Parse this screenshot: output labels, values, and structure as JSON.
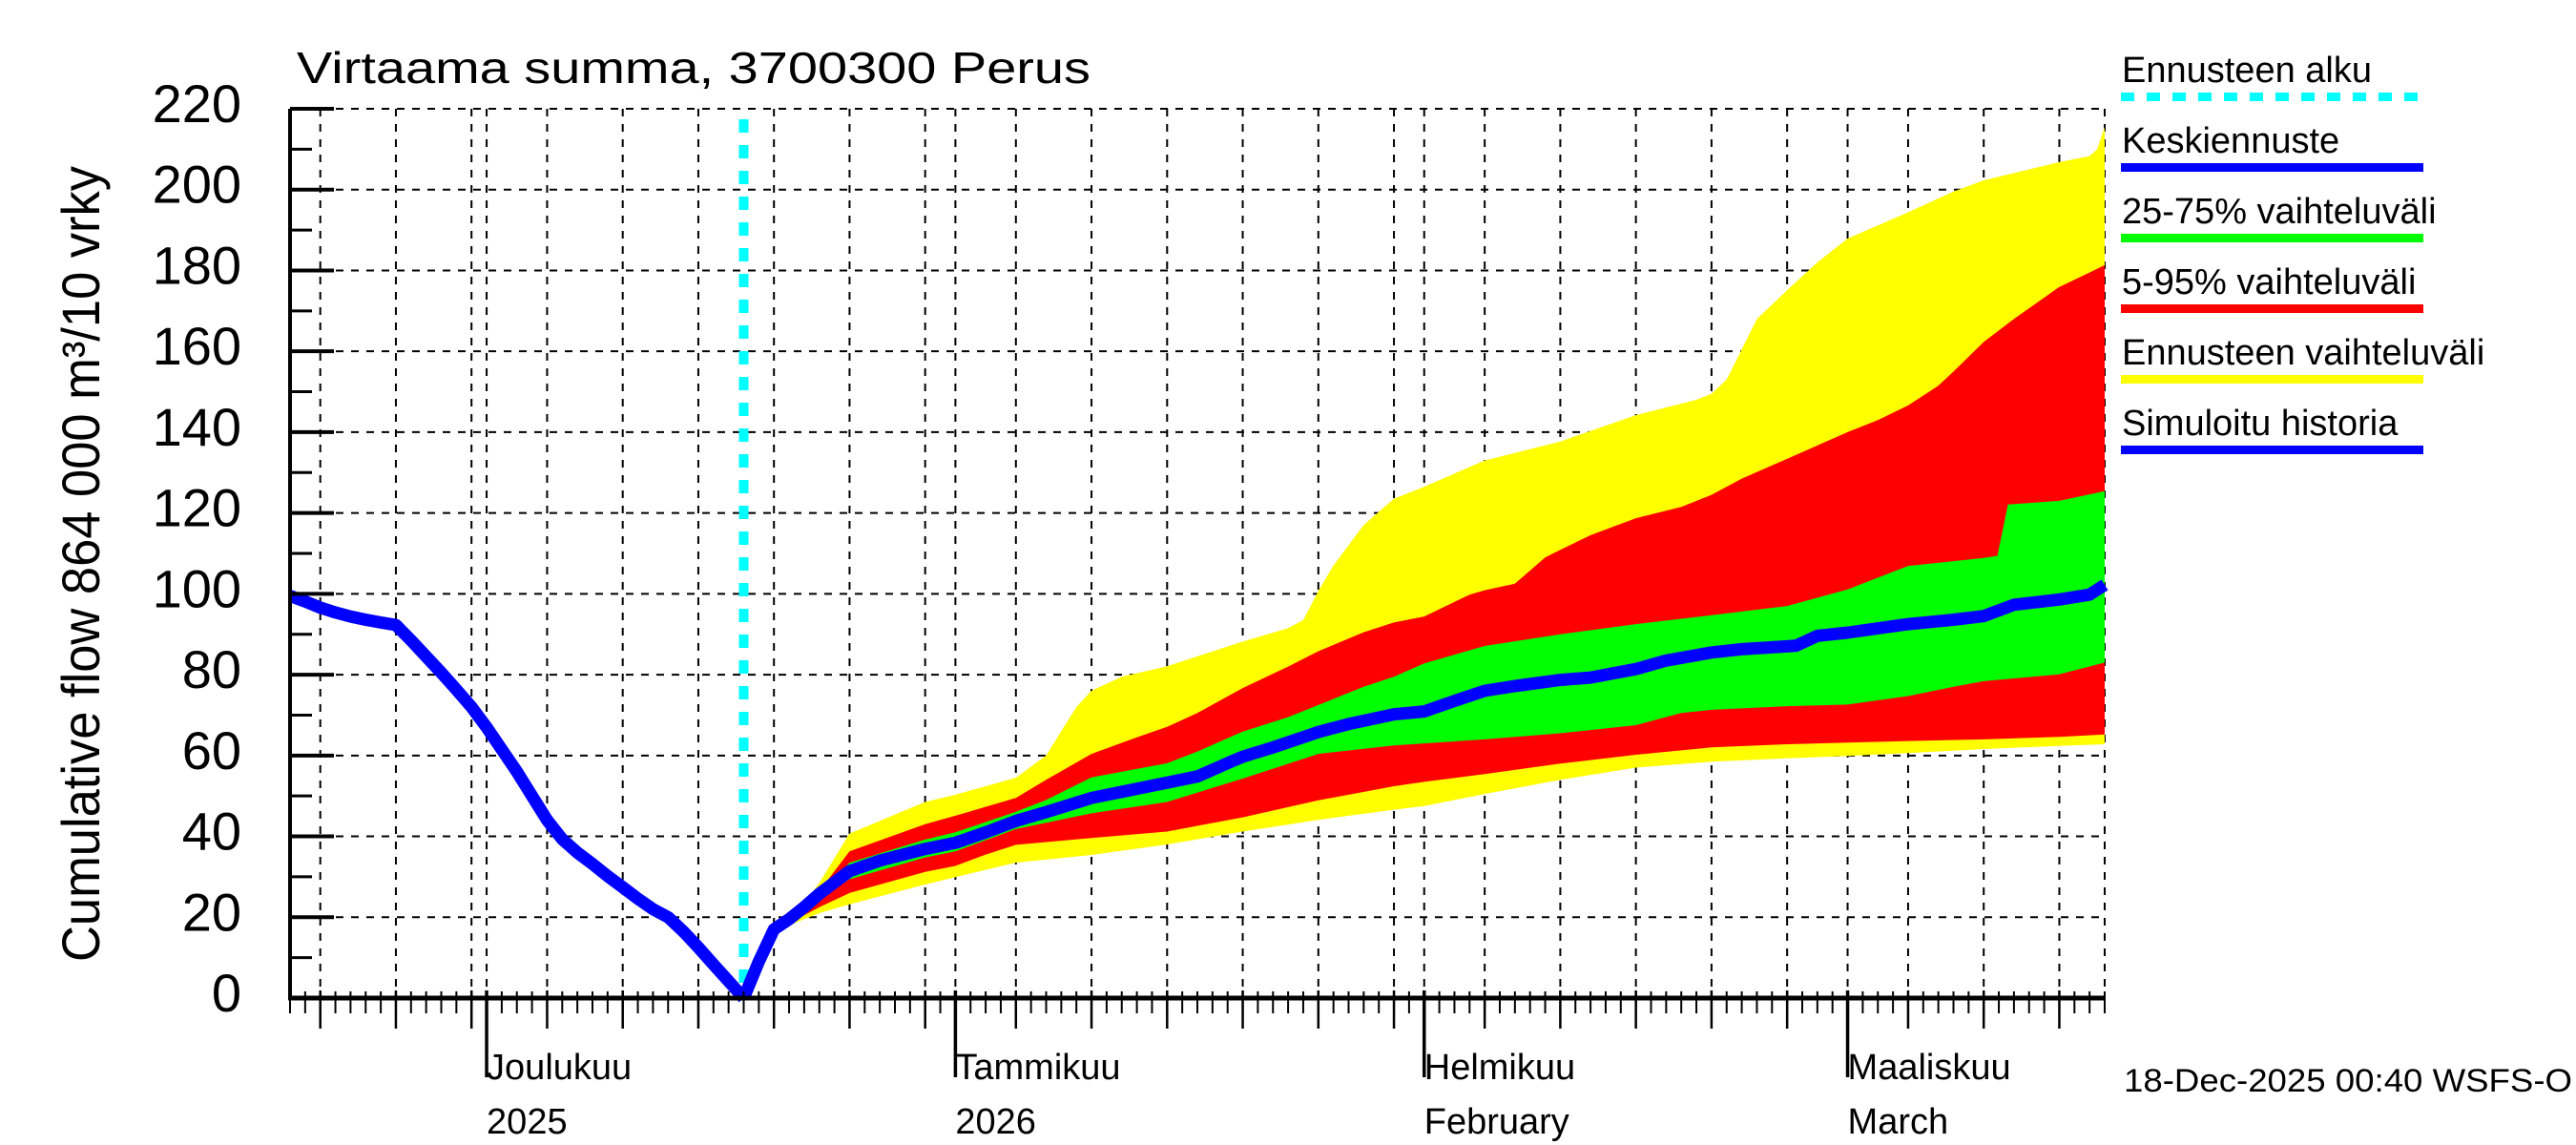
{
  "chart_data": {
    "type": "line",
    "title": "Virtaama summa, 3700300 Perus",
    "ylabel": "Cumulative flow  864 000 m³/10 vrky",
    "timestamp": "18-Dec-2025 00:40 WSFS-O",
    "ylim": [
      0,
      220
    ],
    "y_major_ticks": [
      0,
      20,
      40,
      60,
      80,
      100,
      120,
      140,
      160,
      180,
      200,
      220
    ],
    "y_minor_ticks": [
      10,
      30,
      50,
      70,
      90,
      110,
      130,
      150,
      170,
      190,
      210
    ],
    "x_total_days": 120,
    "forecast_start_day": 30,
    "x_gridline_days": [
      2,
      7,
      12,
      13,
      17,
      22,
      27,
      32,
      37,
      42,
      44,
      48,
      53,
      58,
      63,
      68,
      73,
      75,
      79,
      84,
      89,
      94,
      99,
      103,
      107,
      112,
      117,
      120
    ],
    "x_medium_tick_days": [
      2,
      7,
      12,
      17,
      22,
      27,
      32,
      37,
      42,
      48,
      53,
      58,
      63,
      68,
      73,
      79,
      84,
      89,
      94,
      99,
      107,
      112,
      117
    ],
    "x_month_tick_days": [
      13,
      44,
      75,
      103
    ],
    "month_labels": [
      {
        "name": "Joulukuu",
        "sub": "2025",
        "day": 13
      },
      {
        "name": "Tammikuu",
        "sub": "2026",
        "day": 44
      },
      {
        "name": "Helmikuu",
        "sub": "February",
        "day": 75
      },
      {
        "name": "Maaliskuu",
        "sub": "March",
        "day": 103
      }
    ],
    "colors": {
      "history": "#0000ff",
      "median": "#0000ff",
      "band_25_75": "#00ff00",
      "band_5_95": "#ff0000",
      "band_minmax": "#ffff00",
      "forecast_start": "#00ffff",
      "grid": "#000000",
      "axis": "#000000"
    },
    "legend": [
      {
        "label": "Ennusteen alku",
        "color": "#00ffff",
        "dashed": true
      },
      {
        "label": "Keskiennuste",
        "color": "#0000ff",
        "dashed": false
      },
      {
        "label": "25-75% vaihteluväli",
        "color": "#00ff00",
        "dashed": false
      },
      {
        "label": "5-95% vaihteluväli",
        "color": "#ff0000",
        "dashed": false
      },
      {
        "label": "Ennusteen vaihteluväli",
        "color": "#ffff00",
        "dashed": false
      },
      {
        "label": "Simuloitu historia",
        "color": "#0000ff",
        "dashed": false
      }
    ],
    "series": {
      "history": [
        [
          0,
          99.5
        ],
        [
          1,
          98.1
        ],
        [
          2,
          96.6
        ],
        [
          3,
          95.4
        ],
        [
          4,
          94.4
        ],
        [
          5,
          93.6
        ],
        [
          6,
          92.9
        ],
        [
          7,
          92.3
        ],
        [
          8,
          88.5
        ],
        [
          9,
          84.5
        ],
        [
          10,
          80.5
        ],
        [
          11,
          76.3
        ],
        [
          12,
          72.0
        ],
        [
          13,
          67.0
        ],
        [
          14,
          61.5
        ],
        [
          15,
          56.0
        ],
        [
          16,
          50.0
        ],
        [
          17,
          44.0
        ],
        [
          18,
          39.3
        ],
        [
          19,
          36.0
        ],
        [
          20,
          33.2
        ],
        [
          21,
          30.2
        ],
        [
          22,
          27.4
        ],
        [
          23,
          24.6
        ],
        [
          24,
          22.0
        ],
        [
          25,
          20.0
        ],
        [
          26,
          16.5
        ],
        [
          27,
          12.5
        ],
        [
          28,
          8.3
        ],
        [
          29,
          4.2
        ],
        [
          30,
          0
        ]
      ],
      "median": [
        [
          30,
          0
        ],
        [
          31,
          9
        ],
        [
          32,
          17
        ],
        [
          33,
          19.5
        ],
        [
          34,
          22.5
        ],
        [
          35,
          25.8
        ],
        [
          37,
          31.4
        ],
        [
          39,
          34
        ],
        [
          42,
          36.9
        ],
        [
          44,
          38.4
        ],
        [
          46,
          41
        ],
        [
          48,
          43.8
        ],
        [
          50,
          46
        ],
        [
          53,
          49.5
        ],
        [
          55,
          51
        ],
        [
          58,
          53.3
        ],
        [
          60,
          54.8
        ],
        [
          62.3,
          58.6
        ],
        [
          63,
          59.7
        ],
        [
          65,
          62
        ],
        [
          68,
          65.8
        ],
        [
          70,
          67.8
        ],
        [
          73,
          70.2
        ],
        [
          75,
          70.9
        ],
        [
          77,
          73.5
        ],
        [
          79,
          76.0
        ],
        [
          81,
          77.2
        ],
        [
          84,
          78.7
        ],
        [
          86,
          79.3
        ],
        [
          89,
          81.4
        ],
        [
          91,
          83.5
        ],
        [
          94,
          85.5
        ],
        [
          96,
          86.3
        ],
        [
          99,
          87.0
        ],
        [
          99.6,
          87.2
        ],
        [
          101,
          89.6
        ],
        [
          103,
          90.4
        ],
        [
          107,
          92.5
        ],
        [
          110,
          93.6
        ],
        [
          112,
          94.5
        ],
        [
          114,
          97.3
        ],
        [
          117,
          98.6
        ],
        [
          119,
          99.8
        ],
        [
          120,
          102.2
        ]
      ],
      "p75": [
        [
          30,
          0
        ],
        [
          31,
          9.3
        ],
        [
          32,
          17.5
        ],
        [
          33,
          19.8
        ],
        [
          34,
          22.8
        ],
        [
          35,
          26
        ],
        [
          37,
          33.5
        ],
        [
          42,
          39.2
        ],
        [
          44,
          41.0
        ],
        [
          48,
          46.1
        ],
        [
          50,
          49
        ],
        [
          53,
          54.6
        ],
        [
          58,
          58.1
        ],
        [
          60,
          61
        ],
        [
          63,
          65.9
        ],
        [
          66,
          69.5
        ],
        [
          68,
          72.5
        ],
        [
          71,
          77
        ],
        [
          73,
          79.5
        ],
        [
          75,
          82.8
        ],
        [
          79,
          87.1
        ],
        [
          84,
          90.0
        ],
        [
          89,
          92.5
        ],
        [
          94,
          94.7
        ],
        [
          99,
          97.0
        ],
        [
          103,
          101.1
        ],
        [
          105,
          104
        ],
        [
          107,
          106.9
        ],
        [
          112,
          108.9
        ],
        [
          112.9,
          109.4
        ],
        [
          113.6,
          122.1
        ],
        [
          117,
          123.0
        ],
        [
          120,
          125.4
        ]
      ],
      "p25": [
        [
          30,
          0
        ],
        [
          31,
          8.8
        ],
        [
          32,
          16.5
        ],
        [
          33,
          19
        ],
        [
          34,
          21.5
        ],
        [
          35,
          24.5
        ],
        [
          37,
          29.4
        ],
        [
          42,
          34.8
        ],
        [
          44,
          36.3
        ],
        [
          48,
          41.8
        ],
        [
          53,
          45.7
        ],
        [
          58,
          48.5
        ],
        [
          63,
          54.3
        ],
        [
          68,
          60.4
        ],
        [
          73,
          62.5
        ],
        [
          75,
          63.0
        ],
        [
          79,
          64.0
        ],
        [
          84,
          65.5
        ],
        [
          89,
          67.5
        ],
        [
          92,
          70.5
        ],
        [
          94,
          71.3
        ],
        [
          99,
          72.2
        ],
        [
          103,
          72.6
        ],
        [
          107,
          74.7
        ],
        [
          110,
          77
        ],
        [
          112,
          78.4
        ],
        [
          117,
          80.1
        ],
        [
          120,
          83.0
        ]
      ],
      "p95": [
        [
          30,
          0
        ],
        [
          31,
          9.5
        ],
        [
          32,
          18
        ],
        [
          33,
          20
        ],
        [
          34,
          23
        ],
        [
          35,
          26.5
        ],
        [
          37,
          36.3
        ],
        [
          42,
          43.0
        ],
        [
          44,
          45.1
        ],
        [
          48,
          49.5
        ],
        [
          50,
          54
        ],
        [
          53,
          60.4
        ],
        [
          56,
          64.5
        ],
        [
          58,
          67.1
        ],
        [
          60,
          70.5
        ],
        [
          63,
          76.7
        ],
        [
          66,
          82
        ],
        [
          68,
          85.8
        ],
        [
          71,
          90.5
        ],
        [
          73,
          92.9
        ],
        [
          75,
          94.4
        ],
        [
          78,
          99.8
        ],
        [
          79,
          100.9
        ],
        [
          81,
          102.5
        ],
        [
          83,
          109
        ],
        [
          84,
          110.9
        ],
        [
          86,
          114.5
        ],
        [
          89,
          118.7
        ],
        [
          92,
          121.5
        ],
        [
          94,
          124.5
        ],
        [
          96,
          128.5
        ],
        [
          99,
          133.4
        ],
        [
          103,
          140.0
        ],
        [
          105,
          143
        ],
        [
          107,
          146.6
        ],
        [
          109,
          151.5
        ],
        [
          110,
          155
        ],
        [
          112,
          162.3
        ],
        [
          114,
          168
        ],
        [
          117,
          175.9
        ],
        [
          119,
          179.5
        ],
        [
          120,
          181.3
        ]
      ],
      "p05": [
        [
          30,
          0
        ],
        [
          31,
          8.5
        ],
        [
          32,
          16
        ],
        [
          33,
          18.5
        ],
        [
          34,
          20.5
        ],
        [
          35,
          22.5
        ],
        [
          37,
          26.0
        ],
        [
          42,
          31.2
        ],
        [
          44,
          32.7
        ],
        [
          46,
          35.5
        ],
        [
          48,
          37.9
        ],
        [
          53,
          39.6
        ],
        [
          58,
          41.2
        ],
        [
          63,
          44.7
        ],
        [
          68,
          48.9
        ],
        [
          73,
          52.4
        ],
        [
          75,
          53.5
        ],
        [
          79,
          55.4
        ],
        [
          84,
          58.0
        ],
        [
          89,
          60.2
        ],
        [
          94,
          62.0
        ],
        [
          99,
          62.8
        ],
        [
          103,
          63.2
        ],
        [
          107,
          63.6
        ],
        [
          112,
          64.0
        ],
        [
          117,
          64.6
        ],
        [
          120,
          65.2
        ]
      ],
      "max": [
        [
          30,
          0
        ],
        [
          31,
          10
        ],
        [
          32,
          18.5
        ],
        [
          33,
          20.5
        ],
        [
          34,
          23.5
        ],
        [
          35,
          28.5
        ],
        [
          37,
          40.7
        ],
        [
          42,
          48.5
        ],
        [
          44,
          50.3
        ],
        [
          48,
          54.5
        ],
        [
          50,
          60
        ],
        [
          51,
          66
        ],
        [
          52,
          72
        ],
        [
          53,
          76.0
        ],
        [
          55,
          79.5
        ],
        [
          58,
          82.1
        ],
        [
          63,
          88.2
        ],
        [
          66,
          91.5
        ],
        [
          67,
          93.5
        ],
        [
          68,
          100.7
        ],
        [
          69,
          107
        ],
        [
          71,
          117
        ],
        [
          73,
          123.5
        ],
        [
          75,
          126.5
        ],
        [
          79,
          133.0
        ],
        [
          84,
          137.7
        ],
        [
          89,
          144.2
        ],
        [
          93,
          148
        ],
        [
          94,
          149.5
        ],
        [
          95,
          153
        ],
        [
          97,
          168
        ],
        [
          99,
          175.1
        ],
        [
          101,
          182
        ],
        [
          103,
          187.9
        ],
        [
          107,
          194.4
        ],
        [
          110,
          199.5
        ],
        [
          112,
          202.3
        ],
        [
          117,
          206.8
        ],
        [
          119,
          208.3
        ],
        [
          119.5,
          210
        ],
        [
          120,
          215.5
        ]
      ],
      "min": [
        [
          30,
          0
        ],
        [
          31,
          8
        ],
        [
          32,
          15.5
        ],
        [
          33,
          18
        ],
        [
          34,
          19.5
        ],
        [
          35,
          21
        ],
        [
          37,
          23.2
        ],
        [
          42,
          28.1
        ],
        [
          44,
          29.9
        ],
        [
          48,
          33.5
        ],
        [
          53,
          35.4
        ],
        [
          58,
          38.0
        ],
        [
          63,
          41.2
        ],
        [
          68,
          44.1
        ],
        [
          73,
          46.6
        ],
        [
          75,
          47.5
        ],
        [
          79,
          50.5
        ],
        [
          84,
          54.0
        ],
        [
          89,
          57.0
        ],
        [
          94,
          58.5
        ],
        [
          99,
          59.3
        ],
        [
          103,
          59.9
        ],
        [
          107,
          60.6
        ],
        [
          112,
          61.6
        ],
        [
          117,
          62.4
        ],
        [
          120,
          62.8
        ]
      ]
    }
  }
}
